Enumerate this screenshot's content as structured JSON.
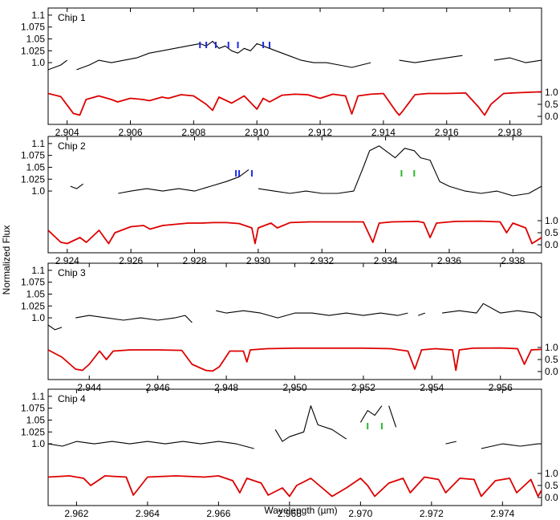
{
  "figure": {
    "xlabel": "Wavelength (µm)",
    "ylabel": "Normalized Flux"
  },
  "colors": {
    "observed": "#000000",
    "model": "#dd0000",
    "blue_marker": "#1a2be6",
    "green_marker": "#2fb52f"
  },
  "chart_data": [
    {
      "type": "line",
      "label": "Chip 1",
      "xlim": [
        2.9034,
        2.919
      ],
      "xticks": [
        "2.904",
        "2.906",
        "2.908",
        "2.910",
        "2.912",
        "2.914",
        "2.916",
        "2.918"
      ],
      "ylim_left": [
        0.87,
        1.115
      ],
      "yticks_left": [
        "1.1",
        "1.075",
        "1.05",
        "1.025",
        "1.0"
      ],
      "yticks_right": [
        "1.0",
        "0.5",
        "0.0"
      ],
      "series": [
        {
          "role": "observed",
          "x": [
            2.9034,
            2.9036,
            2.9038,
            2.904,
            2.9041,
            2.9043,
            2.9047,
            2.905,
            2.9054,
            2.9058,
            2.9062,
            2.9066,
            2.907,
            2.9074,
            2.9078,
            2.9082,
            2.9084,
            2.9086,
            2.9088,
            2.909,
            2.9092,
            2.9094,
            2.9096,
            2.9098,
            2.91,
            2.9102,
            2.9104,
            2.9106,
            2.911,
            2.9114,
            2.9118,
            2.9122,
            2.9126,
            2.913,
            2.9136,
            2.914,
            2.9145,
            2.915,
            2.9155,
            2.916,
            2.9165,
            2.917,
            2.9175,
            2.918,
            2.9185,
            2.919
          ],
          "y": [
            0.985,
            0.99,
            0.995,
            1.005,
            null,
            0.985,
            0.995,
            1.005,
            1.0,
            1.005,
            1.01,
            1.02,
            1.025,
            1.03,
            1.035,
            1.04,
            1.035,
            1.045,
            1.03,
            1.035,
            1.025,
            1.02,
            1.03,
            1.025,
            1.04,
            1.035,
            1.03,
            1.025,
            1.015,
            1.005,
            1.0,
            1.0,
            0.995,
            0.99,
            1.0,
            null,
            1.005,
            1.0,
            1.005,
            1.01,
            1.015,
            null,
            1.005,
            1.01,
            1.0,
            1.005
          ]
        },
        {
          "role": "model",
          "x": [
            2.9034,
            2.9038,
            2.9042,
            2.9044,
            2.9046,
            2.905,
            2.9054,
            2.9056,
            2.906,
            2.9064,
            2.9066,
            2.907,
            2.9072,
            2.9076,
            2.908,
            2.9084,
            2.9086,
            2.9088,
            2.9092,
            2.9096,
            2.91,
            2.9102,
            2.9104,
            2.9108,
            2.9112,
            2.9116,
            2.912,
            2.9124,
            2.9128,
            2.913,
            2.9132,
            2.9136,
            2.914,
            2.9144,
            2.9145,
            2.9146,
            2.915,
            2.9154,
            2.916,
            2.9166,
            2.917,
            2.9172,
            2.9174,
            2.9178,
            2.9182,
            2.9186,
            2.919
          ],
          "y": [
            0.95,
            0.82,
            0.12,
            0.05,
            0.7,
            0.85,
            0.7,
            0.6,
            0.75,
            0.7,
            0.65,
            0.8,
            0.75,
            0.9,
            0.85,
            0.5,
            0.25,
            0.8,
            0.55,
            0.85,
            0.3,
            0.75,
            0.6,
            0.88,
            0.92,
            0.9,
            0.75,
            0.92,
            0.85,
            0.1,
            0.85,
            0.92,
            0.95,
            0.2,
            0.05,
            0.2,
            0.9,
            0.95,
            0.95,
            0.97,
            0.4,
            0.05,
            0.5,
            0.95,
            0.98,
            1.0,
            1.02
          ]
        }
      ],
      "markers": [
        {
          "color": "blue",
          "x": [
            2.9082,
            2.9084,
            2.9087,
            2.9091,
            2.9094,
            2.9102,
            2.9104
          ]
        }
      ]
    },
    {
      "type": "line",
      "label": "Chip 2",
      "xlim": [
        2.9234,
        2.9389
      ],
      "xticks": [
        "2.924",
        "2.926",
        "2.928",
        "2.930",
        "2.932",
        "2.934",
        "2.936",
        "2.938"
      ],
      "ylim_left": [
        0.87,
        1.115
      ],
      "yticks_left": [
        "1.1",
        "1.075",
        "1.05",
        "1.025",
        "1.0"
      ],
      "yticks_right": [
        "1.0",
        "0.5",
        "0.0"
      ],
      "series": [
        {
          "role": "observed",
          "x": [
            2.9241,
            2.9243,
            2.9245,
            null,
            2.9256,
            2.926,
            2.9265,
            2.927,
            2.9275,
            2.928,
            2.9285,
            2.929,
            2.9294,
            2.9297,
            null,
            2.93,
            2.9305,
            2.931,
            2.9315,
            2.932,
            2.9325,
            2.933,
            2.9333,
            2.9335,
            2.9338,
            2.9341,
            2.9343,
            2.9346,
            2.9349,
            2.9351,
            2.9354,
            2.9357,
            2.936,
            2.9365,
            2.937,
            2.9375,
            2.938,
            2.9385,
            2.9389
          ],
          "y": [
            1.01,
            1.005,
            1.015,
            null,
            0.995,
            1.0,
            1.005,
            1.0,
            1.005,
            1.0,
            1.01,
            1.02,
            1.03,
            1.045,
            null,
            1.005,
            1.0,
            0.995,
            1.0,
            0.995,
            0.995,
            1.0,
            1.05,
            1.085,
            1.095,
            1.08,
            1.07,
            1.09,
            1.085,
            1.07,
            1.065,
            1.02,
            1.01,
            1.0,
            0.995,
            1.0,
            0.99,
            0.995,
            1.01
          ]
        },
        {
          "role": "model",
          "x": [
            2.9234,
            2.9238,
            2.924,
            2.9244,
            2.9246,
            2.925,
            2.9253,
            2.9255,
            2.926,
            2.9264,
            2.9266,
            2.927,
            2.9274,
            2.9278,
            2.9282,
            2.9286,
            2.929,
            2.9294,
            2.9298,
            2.9299,
            2.93,
            2.9304,
            2.9306,
            2.931,
            2.9316,
            2.9322,
            2.9328,
            2.9333,
            2.9336,
            2.9338,
            2.9342,
            2.935,
            2.9352,
            2.9354,
            2.9356,
            2.9362,
            2.937,
            2.9376,
            2.9378,
            2.938,
            2.9384,
            2.9386,
            2.9389
          ],
          "y": [
            0.6,
            0.1,
            0.05,
            0.3,
            0.1,
            0.6,
            0.05,
            0.5,
            0.75,
            0.8,
            0.65,
            0.8,
            0.85,
            0.9,
            0.9,
            0.92,
            0.92,
            0.88,
            0.7,
            0.05,
            0.7,
            0.9,
            0.7,
            0.92,
            0.95,
            0.95,
            0.95,
            0.95,
            0.1,
            0.9,
            0.95,
            0.97,
            0.92,
            0.3,
            0.9,
            0.97,
            0.98,
            0.95,
            0.5,
            0.9,
            0.7,
            0.05,
            0.3
          ]
        }
      ],
      "markers": [
        {
          "color": "blue",
          "x": [
            2.9293,
            2.9294,
            2.9298
          ]
        },
        {
          "color": "green",
          "x": [
            2.9345,
            2.9349
          ]
        }
      ]
    },
    {
      "type": "line",
      "label": "Chip 3",
      "xlim": [
        2.9428,
        2.9572
      ],
      "xticks": [
        "2.944",
        "2.946",
        "2.948",
        "2.950",
        "2.952",
        "2.954",
        "2.956"
      ],
      "ylim_left": [
        0.87,
        1.115
      ],
      "yticks_left": [
        "1.1",
        "1.075",
        "1.05",
        "1.025",
        "1.0"
      ],
      "yticks_right": [
        "1.0",
        "0.5",
        "0.0"
      ],
      "series": [
        {
          "role": "observed",
          "x": [
            2.9428,
            2.943,
            2.9432,
            null,
            2.9436,
            2.944,
            2.9445,
            2.945,
            2.9455,
            2.946,
            2.9465,
            2.9468,
            2.947,
            null,
            2.9477,
            2.948,
            2.9485,
            2.949,
            2.9495,
            2.95,
            2.9505,
            2.951,
            2.9515,
            2.952,
            2.9525,
            2.953,
            2.9533,
            null,
            2.9536,
            2.9538,
            null,
            2.9543,
            2.9548,
            2.9553,
            2.9555,
            2.956,
            2.9565,
            2.957,
            2.9572
          ],
          "y": [
            0.985,
            0.975,
            0.98,
            null,
            1.0,
            1.005,
            1.0,
            0.995,
            1.0,
            0.995,
            1.0,
            1.005,
            0.99,
            null,
            1.015,
            1.01,
            1.015,
            1.01,
            1.0,
            1.01,
            1.01,
            1.005,
            1.01,
            1.005,
            1.01,
            1.005,
            1.01,
            null,
            1.005,
            1.01,
            null,
            1.01,
            1.015,
            1.01,
            1.03,
            1.01,
            1.015,
            1.01,
            1.0
          ]
        },
        {
          "role": "model",
          "x": [
            2.9428,
            2.9432,
            2.9436,
            2.9438,
            2.944,
            2.9443,
            2.9445,
            2.9447,
            2.9452,
            2.946,
            2.9467,
            2.947,
            2.9474,
            2.9476,
            2.9478,
            2.9481,
            2.9485,
            2.9486,
            2.9487,
            2.9492,
            2.95,
            2.951,
            2.952,
            2.9528,
            2.9533,
            2.9535,
            2.9537,
            2.9541,
            2.9546,
            2.9547,
            2.9548,
            2.9552,
            2.956,
            2.9565,
            2.9567,
            2.9569,
            2.9572
          ],
          "y": [
            0.9,
            0.6,
            0.1,
            0.05,
            0.3,
            0.85,
            0.5,
            0.85,
            0.9,
            0.9,
            0.88,
            0.3,
            0.05,
            0.02,
            0.2,
            0.85,
            0.85,
            0.4,
            0.9,
            0.95,
            0.97,
            0.97,
            0.97,
            0.95,
            0.85,
            0.1,
            0.9,
            0.95,
            0.9,
            0.05,
            0.9,
            0.97,
            0.98,
            0.95,
            0.3,
            0.9,
            0.92
          ]
        }
      ],
      "markers": []
    },
    {
      "type": "line",
      "label": "Chip 4",
      "xlim": [
        2.9612,
        2.9751
      ],
      "xticks": [
        "2.962",
        "2.964",
        "2.966",
        "2.968",
        "2.970",
        "2.972",
        "2.974"
      ],
      "ylim_left": [
        0.87,
        1.115
      ],
      "yticks_left": [
        "1.1",
        "1.075",
        "1.05",
        "1.025",
        "1.0"
      ],
      "yticks_right": [
        "1.0",
        "0.5",
        "0.0"
      ],
      "series": [
        {
          "role": "observed",
          "x": [
            2.9612,
            2.9616,
            2.962,
            2.9625,
            2.963,
            2.9635,
            2.964,
            2.9645,
            2.965,
            2.9655,
            2.966,
            2.9665,
            2.967,
            null,
            2.9676,
            2.9678,
            2.968,
            2.9684,
            2.9686,
            2.9688,
            2.9692,
            2.9696,
            null,
            2.97,
            2.9702,
            2.9704,
            2.9706,
            null,
            2.9708,
            2.971,
            null,
            2.9724,
            2.9727,
            null,
            2.9734,
            2.974,
            2.9745,
            2.975,
            2.9751
          ],
          "y": [
            1.0,
            0.995,
            1.005,
            1.0,
            1.005,
            1.0,
            1.005,
            1.0,
            1.005,
            1.0,
            1.005,
            1.0,
            0.99,
            null,
            1.03,
            1.005,
            1.015,
            1.025,
            1.08,
            1.04,
            1.03,
            1.01,
            null,
            1.045,
            1.07,
            1.06,
            1.08,
            null,
            1.08,
            1.035,
            null,
            1.0,
            1.005,
            null,
            0.99,
            1.0,
            0.995,
            1.0,
            1.0
          ]
        },
        {
          "role": "model",
          "x": [
            2.9612,
            2.9618,
            2.9622,
            2.9624,
            2.9628,
            2.9634,
            2.9636,
            2.964,
            2.9648,
            2.9656,
            2.966,
            2.9664,
            2.9666,
            2.9668,
            2.9672,
            2.9674,
            2.9678,
            2.968,
            2.9682,
            2.9686,
            2.969,
            2.9692,
            2.9696,
            2.97,
            2.9702,
            2.9704,
            2.9708,
            2.9712,
            2.9714,
            2.9718,
            2.9722,
            2.9724,
            2.9728,
            2.9732,
            2.9734,
            2.9738,
            2.9742,
            2.9744,
            2.9748,
            2.975,
            2.9751
          ],
          "y": [
            0.85,
            0.9,
            0.8,
            0.5,
            0.9,
            0.85,
            0.1,
            0.85,
            0.9,
            0.85,
            0.9,
            0.7,
            0.2,
            0.8,
            0.6,
            0.1,
            0.4,
            0.05,
            0.5,
            0.8,
            0.3,
            0.05,
            0.4,
            0.8,
            0.5,
            0.05,
            0.6,
            0.8,
            0.2,
            0.85,
            0.75,
            0.2,
            0.8,
            0.75,
            0.05,
            0.7,
            0.8,
            0.2,
            0.75,
            0.05,
            0.3
          ]
        }
      ],
      "markers": [
        {
          "color": "green",
          "x": [
            2.9702,
            2.9706
          ]
        }
      ]
    }
  ]
}
